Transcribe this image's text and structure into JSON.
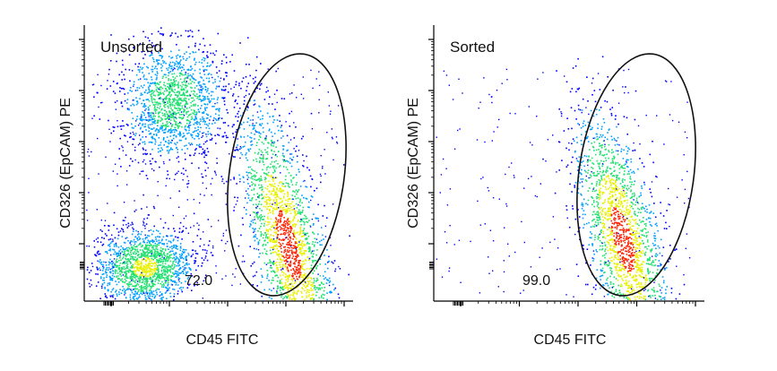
{
  "chart_data": [
    {
      "type": "scatter",
      "subtype": "flow-cytometry-density-plot",
      "panel_label": "Unsorted",
      "xlabel": "CD45 FITC",
      "ylabel": "CD326 (EpCAM) PE",
      "x_scale": "log",
      "y_scale": "log",
      "grid": false,
      "gate": {
        "shape": "ellipse",
        "percentage": "72.0"
      },
      "populations": [
        {
          "description": "EpCAM-high / CD45-low cluster",
          "relative_x": 0.33,
          "relative_y": 0.73,
          "relative_density": 0.6
        },
        {
          "description": "EpCAM-low / CD45-low cluster",
          "relative_x": 0.22,
          "relative_y": 0.12,
          "relative_density": 0.75
        },
        {
          "description": "CD45-high cluster inside gate",
          "relative_x": 0.76,
          "relative_y": 0.2,
          "relative_density": 1.0
        }
      ]
    },
    {
      "type": "scatter",
      "subtype": "flow-cytometry-density-plot",
      "panel_label": "Sorted",
      "xlabel": "CD45 FITC",
      "ylabel": "CD326 (EpCAM) PE",
      "x_scale": "log",
      "y_scale": "log",
      "grid": false,
      "gate": {
        "shape": "ellipse",
        "percentage": "99.0"
      },
      "populations": [
        {
          "description": "CD45-high cluster inside gate",
          "relative_x": 0.7,
          "relative_y": 0.22,
          "relative_density": 1.0
        }
      ]
    }
  ],
  "colors": {
    "density_low": "#0000ff",
    "density_mid_low": "#00a0ff",
    "density_mid": "#20e070",
    "density_mid_high": "#e8f000",
    "density_high": "#ff2000",
    "axis": "#000000",
    "gate": "#111111"
  }
}
